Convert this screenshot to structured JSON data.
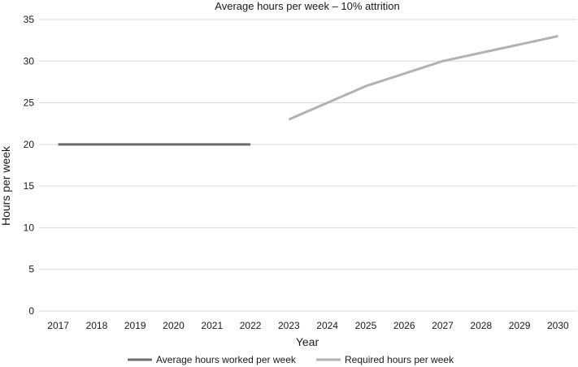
{
  "chart_data": {
    "type": "line",
    "title": "Average hours per week – 10% attrition",
    "xlabel": "Year",
    "ylabel": "Hours per week",
    "x": [
      "2017",
      "2018",
      "2019",
      "2020",
      "2021",
      "2022",
      "2023",
      "2024",
      "2025",
      "2026",
      "2027",
      "2028",
      "2029",
      "2030"
    ],
    "y_ticks": [
      "0",
      "5",
      "10",
      "15",
      "20",
      "25",
      "30",
      "35"
    ],
    "ylim": [
      0,
      35
    ],
    "grid": true,
    "legend_position": "bottom",
    "series": [
      {
        "name": "Average hours worked per week",
        "color": "#6d6d6d",
        "values": [
          20,
          20,
          20,
          20,
          20,
          20,
          null,
          null,
          null,
          null,
          null,
          null,
          null,
          null
        ]
      },
      {
        "name": "Required hours per week",
        "color": "#b2b2b2",
        "values": [
          null,
          null,
          null,
          null,
          null,
          null,
          23,
          25,
          27,
          28.5,
          30,
          31,
          32,
          33
        ]
      }
    ]
  }
}
